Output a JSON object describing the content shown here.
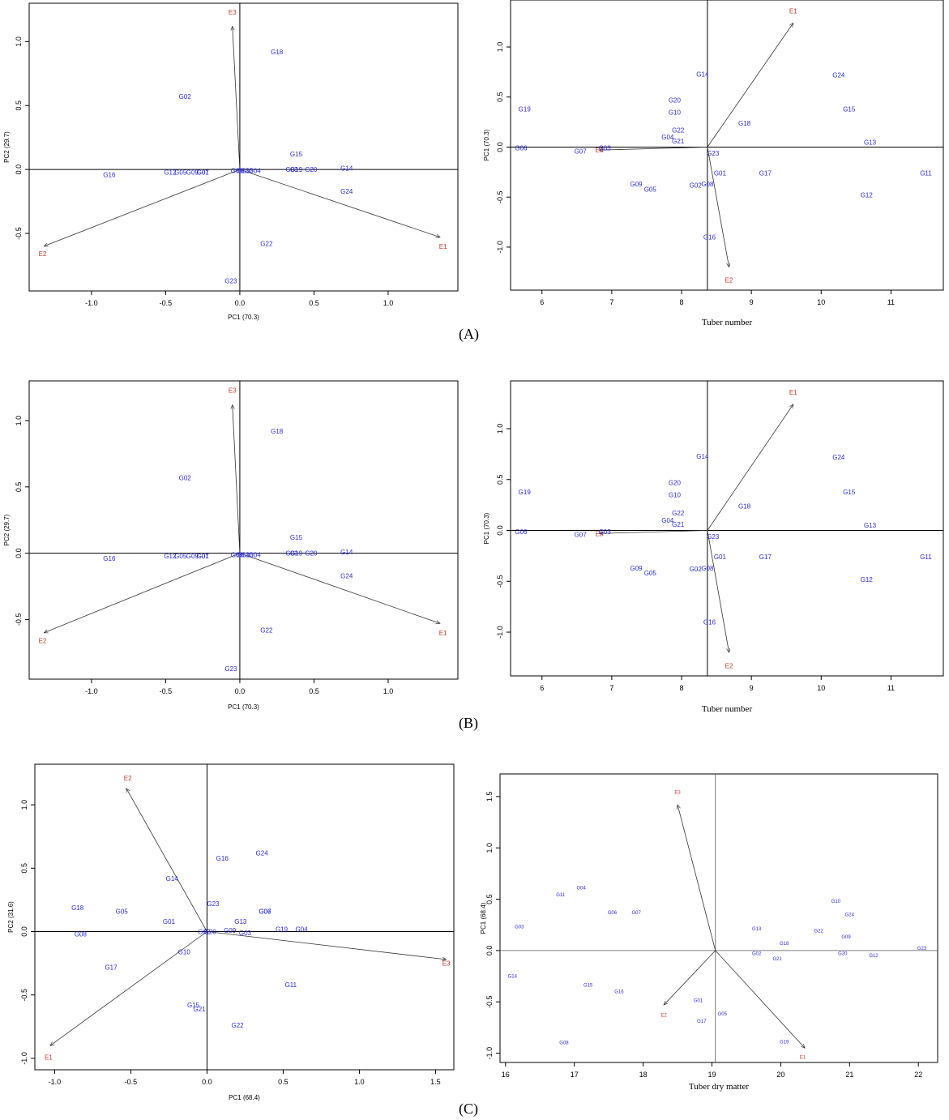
{
  "captions": [
    "(A)",
    "(B)",
    "(C)"
  ],
  "chart_data": [
    {
      "panel": "A-left",
      "type": "scatter",
      "xlabel": "PC1 (70.3)",
      "ylabel": "PC2 (29.7)",
      "xticks": [
        -1.0,
        -0.5,
        0.0,
        0.5,
        1.0
      ],
      "yticks": [
        -0.5,
        0.0,
        0.5,
        1.0
      ],
      "xlim": [
        -1.42,
        1.47
      ],
      "ylim": [
        -0.95,
        1.3
      ],
      "genotypes": [
        {
          "label": "G18",
          "x": 0.25,
          "y": 0.92
        },
        {
          "label": "G02",
          "x": -0.37,
          "y": 0.57
        },
        {
          "label": "G15",
          "x": 0.38,
          "y": 0.12
        },
        {
          "label": "G16",
          "x": -0.88,
          "y": -0.04
        },
        {
          "label": "G12",
          "x": -0.47,
          "y": -0.02
        },
        {
          "label": "G05",
          "x": -0.4,
          "y": -0.02
        },
        {
          "label": "G09",
          "x": -0.32,
          "y": -0.02
        },
        {
          "label": "G01",
          "x": -0.25,
          "y": -0.02
        },
        {
          "label": "G07",
          "x": -0.25,
          "y": -0.02
        },
        {
          "label": "G06",
          "x": -0.02,
          "y": -0.01
        },
        {
          "label": "G13",
          "x": 0.02,
          "y": -0.01
        },
        {
          "label": "G10",
          "x": 0.05,
          "y": -0.01
        },
        {
          "label": "G04",
          "x": 0.1,
          "y": -0.01
        },
        {
          "label": "G03",
          "x": 0.35,
          "y": 0.0
        },
        {
          "label": "G19",
          "x": 0.38,
          "y": 0.0
        },
        {
          "label": "G20",
          "x": 0.48,
          "y": 0.0
        },
        {
          "label": "G14",
          "x": 0.72,
          "y": 0.01
        },
        {
          "label": "G24",
          "x": 0.72,
          "y": -0.17
        },
        {
          "label": "G22",
          "x": 0.18,
          "y": -0.58
        },
        {
          "label": "G23",
          "x": -0.06,
          "y": -0.87
        }
      ],
      "environments": [
        {
          "label": "E1",
          "x": 1.35,
          "y": -0.53,
          "lx": 1.37,
          "ly": -0.6
        },
        {
          "label": "E2",
          "x": -1.32,
          "y": -0.6,
          "lx": -1.33,
          "ly": -0.66
        },
        {
          "label": "E3",
          "x": -0.05,
          "y": 1.12,
          "lx": -0.05,
          "ly": 1.23
        }
      ]
    },
    {
      "panel": "A-right",
      "type": "scatter",
      "xlabel": "Tuber number",
      "ylabel": "PC1 (70.3)",
      "xticks": [
        6,
        7,
        8,
        9,
        10,
        11
      ],
      "yticks": [
        -1.0,
        -0.5,
        0.0,
        0.5,
        1.0
      ],
      "xlim": [
        5.55,
        11.75
      ],
      "ylim": [
        -1.43,
        1.47
      ],
      "ref_x": 8.37,
      "genotypes": [
        {
          "label": "G14",
          "x": 8.3,
          "y": 0.73
        },
        {
          "label": "G24",
          "x": 10.25,
          "y": 0.72
        },
        {
          "label": "G19",
          "x": 5.75,
          "y": 0.38
        },
        {
          "label": "G20",
          "x": 7.9,
          "y": 0.47
        },
        {
          "label": "G10",
          "x": 7.9,
          "y": 0.35
        },
        {
          "label": "G15",
          "x": 10.4,
          "y": 0.38
        },
        {
          "label": "G18",
          "x": 8.9,
          "y": 0.24
        },
        {
          "label": "G22",
          "x": 7.95,
          "y": 0.17
        },
        {
          "label": "G04",
          "x": 7.8,
          "y": 0.1
        },
        {
          "label": "G21",
          "x": 7.95,
          "y": 0.06
        },
        {
          "label": "G06",
          "x": 5.7,
          "y": -0.01
        },
        {
          "label": "G07",
          "x": 6.55,
          "y": -0.04
        },
        {
          "label": "G03",
          "x": 6.9,
          "y": -0.01
        },
        {
          "label": "G13",
          "x": 10.7,
          "y": 0.05
        },
        {
          "label": "G23",
          "x": 8.45,
          "y": -0.06
        },
        {
          "label": "G01",
          "x": 8.55,
          "y": -0.26
        },
        {
          "label": "G17",
          "x": 9.2,
          "y": -0.26
        },
        {
          "label": "G11",
          "x": 11.5,
          "y": -0.26
        },
        {
          "label": "G09",
          "x": 7.35,
          "y": -0.37
        },
        {
          "label": "G05",
          "x": 7.55,
          "y": -0.42
        },
        {
          "label": "G02",
          "x": 8.2,
          "y": -0.38
        },
        {
          "label": "G08",
          "x": 8.37,
          "y": -0.37
        },
        {
          "label": "G12",
          "x": 10.65,
          "y": -0.48
        },
        {
          "label": "G16",
          "x": 8.4,
          "y": -0.9
        }
      ],
      "environments": [
        {
          "label": "E1",
          "x": 9.6,
          "y": 1.24,
          "lx": 9.6,
          "ly": 1.36
        },
        {
          "label": "E2",
          "x": 8.68,
          "y": -1.2,
          "lx": 8.68,
          "ly": -1.33
        },
        {
          "label": "E3",
          "x": 6.82,
          "y": -0.03,
          "lx": 6.82,
          "ly": -0.03
        }
      ]
    },
    {
      "panel": "B-left",
      "type": "scatter",
      "xlabel": "PC1 (70.3)",
      "ylabel": "PC2 (29.7)",
      "xticks": [
        -1.0,
        -0.5,
        0.0,
        0.5,
        1.0
      ],
      "yticks": [
        -0.5,
        0.0,
        0.5,
        1.0
      ],
      "xlim": [
        -1.42,
        1.47
      ],
      "ylim": [
        -0.95,
        1.3
      ],
      "genotypes": [
        {
          "label": "G18",
          "x": 0.25,
          "y": 0.92
        },
        {
          "label": "G02",
          "x": -0.37,
          "y": 0.57
        },
        {
          "label": "G15",
          "x": 0.38,
          "y": 0.12
        },
        {
          "label": "G16",
          "x": -0.88,
          "y": -0.04
        },
        {
          "label": "G12",
          "x": -0.47,
          "y": -0.02
        },
        {
          "label": "G05",
          "x": -0.4,
          "y": -0.02
        },
        {
          "label": "G09",
          "x": -0.32,
          "y": -0.02
        },
        {
          "label": "G01",
          "x": -0.25,
          "y": -0.02
        },
        {
          "label": "G07",
          "x": -0.25,
          "y": -0.02
        },
        {
          "label": "G06",
          "x": -0.02,
          "y": -0.01
        },
        {
          "label": "G13",
          "x": 0.02,
          "y": -0.01
        },
        {
          "label": "G10",
          "x": 0.05,
          "y": -0.01
        },
        {
          "label": "G04",
          "x": 0.1,
          "y": -0.01
        },
        {
          "label": "G03",
          "x": 0.35,
          "y": 0.0
        },
        {
          "label": "G19",
          "x": 0.38,
          "y": 0.0
        },
        {
          "label": "G20",
          "x": 0.48,
          "y": 0.0
        },
        {
          "label": "G14",
          "x": 0.72,
          "y": 0.01
        },
        {
          "label": "G24",
          "x": 0.72,
          "y": -0.17
        },
        {
          "label": "G22",
          "x": 0.18,
          "y": -0.58
        },
        {
          "label": "G23",
          "x": -0.06,
          "y": -0.87
        }
      ],
      "environments": [
        {
          "label": "E1",
          "x": 1.35,
          "y": -0.53,
          "lx": 1.37,
          "ly": -0.6
        },
        {
          "label": "E2",
          "x": -1.32,
          "y": -0.6,
          "lx": -1.33,
          "ly": -0.66
        },
        {
          "label": "E3",
          "x": -0.05,
          "y": 1.12,
          "lx": -0.05,
          "ly": 1.23
        }
      ]
    },
    {
      "panel": "B-right",
      "type": "scatter",
      "xlabel": "Tuber number",
      "ylabel": "PC1 (70.3)",
      "xticks": [
        6,
        7,
        8,
        9,
        10,
        11
      ],
      "yticks": [
        -1.0,
        -0.5,
        0.0,
        0.5,
        1.0
      ],
      "xlim": [
        5.55,
        11.75
      ],
      "ylim": [
        -1.43,
        1.47
      ],
      "ref_x": 8.37,
      "genotypes": [
        {
          "label": "G14",
          "x": 8.3,
          "y": 0.73
        },
        {
          "label": "G24",
          "x": 10.25,
          "y": 0.72
        },
        {
          "label": "G19",
          "x": 5.75,
          "y": 0.38
        },
        {
          "label": "G20",
          "x": 7.9,
          "y": 0.47
        },
        {
          "label": "G10",
          "x": 7.9,
          "y": 0.35
        },
        {
          "label": "G15",
          "x": 10.4,
          "y": 0.38
        },
        {
          "label": "G18",
          "x": 8.9,
          "y": 0.24
        },
        {
          "label": "G22",
          "x": 7.95,
          "y": 0.17
        },
        {
          "label": "G04",
          "x": 7.8,
          "y": 0.1
        },
        {
          "label": "G21",
          "x": 7.95,
          "y": 0.06
        },
        {
          "label": "G06",
          "x": 5.7,
          "y": -0.01
        },
        {
          "label": "G07",
          "x": 6.55,
          "y": -0.04
        },
        {
          "label": "G03",
          "x": 6.9,
          "y": -0.01
        },
        {
          "label": "G13",
          "x": 10.7,
          "y": 0.05
        },
        {
          "label": "G23",
          "x": 8.45,
          "y": -0.06
        },
        {
          "label": "G01",
          "x": 8.55,
          "y": -0.26
        },
        {
          "label": "G17",
          "x": 9.2,
          "y": -0.26
        },
        {
          "label": "G11",
          "x": 11.5,
          "y": -0.26
        },
        {
          "label": "G09",
          "x": 7.35,
          "y": -0.37
        },
        {
          "label": "G05",
          "x": 7.55,
          "y": -0.42
        },
        {
          "label": "G02",
          "x": 8.2,
          "y": -0.38
        },
        {
          "label": "G08",
          "x": 8.37,
          "y": -0.37
        },
        {
          "label": "G12",
          "x": 10.65,
          "y": -0.48
        },
        {
          "label": "G16",
          "x": 8.4,
          "y": -0.9
        }
      ],
      "environments": [
        {
          "label": "E1",
          "x": 9.6,
          "y": 1.24,
          "lx": 9.6,
          "ly": 1.36
        },
        {
          "label": "E2",
          "x": 8.68,
          "y": -1.2,
          "lx": 8.68,
          "ly": -1.33
        },
        {
          "label": "E3",
          "x": 6.82,
          "y": -0.03,
          "lx": 6.82,
          "ly": -0.03
        }
      ]
    },
    {
      "panel": "C-left",
      "type": "scatter",
      "xlabel": "PC1 (68.4)",
      "ylabel": "PC2 (31.6)",
      "xticks": [
        -1.0,
        -0.5,
        0.0,
        0.5,
        1.0,
        1.5
      ],
      "yticks": [
        -1.0,
        -0.5,
        0.0,
        0.5,
        1.0
      ],
      "xlim": [
        -1.13,
        1.62
      ],
      "ylim": [
        -1.09,
        1.32
      ],
      "genotypes": [
        {
          "label": "G24",
          "x": 0.36,
          "y": 0.62
        },
        {
          "label": "G16",
          "x": 0.1,
          "y": 0.58
        },
        {
          "label": "G14",
          "x": -0.23,
          "y": 0.42
        },
        {
          "label": "G23",
          "x": 0.04,
          "y": 0.22
        },
        {
          "label": "G18",
          "x": -0.85,
          "y": 0.19
        },
        {
          "label": "G05",
          "x": -0.56,
          "y": 0.16
        },
        {
          "label": "G07",
          "x": 0.38,
          "y": 0.16
        },
        {
          "label": "G06",
          "x": 0.38,
          "y": 0.16
        },
        {
          "label": "G01",
          "x": -0.25,
          "y": 0.08
        },
        {
          "label": "G13",
          "x": 0.22,
          "y": 0.08
        },
        {
          "label": "G08",
          "x": -0.83,
          "y": -0.02
        },
        {
          "label": "G02",
          "x": -0.02,
          "y": 0.0
        },
        {
          "label": "G20",
          "x": 0.02,
          "y": 0.0
        },
        {
          "label": "G09",
          "x": 0.15,
          "y": 0.01
        },
        {
          "label": "G03",
          "x": 0.25,
          "y": -0.01
        },
        {
          "label": "G19",
          "x": 0.49,
          "y": 0.02
        },
        {
          "label": "G04",
          "x": 0.62,
          "y": 0.02
        },
        {
          "label": "G17",
          "x": -0.63,
          "y": -0.28
        },
        {
          "label": "G10",
          "x": -0.15,
          "y": -0.16
        },
        {
          "label": "G11",
          "x": 0.55,
          "y": -0.42
        },
        {
          "label": "G15",
          "x": -0.09,
          "y": -0.58
        },
        {
          "label": "G21",
          "x": -0.05,
          "y": -0.61
        },
        {
          "label": "G22",
          "x": 0.2,
          "y": -0.74
        }
      ],
      "environments": [
        {
          "label": "E1",
          "x": -1.03,
          "y": -0.9,
          "lx": -1.04,
          "ly": -0.99
        },
        {
          "label": "E2",
          "x": -0.53,
          "y": 1.13,
          "lx": -0.52,
          "ly": 1.21
        },
        {
          "label": "E3",
          "x": 1.57,
          "y": -0.22,
          "lx": 1.57,
          "ly": -0.25
        }
      ]
    },
    {
      "panel": "C-right",
      "type": "scatter",
      "xlabel": "Tuber dry matter",
      "ylabel": "PC1 (68.4)",
      "xticks": [
        16,
        17,
        18,
        19,
        20,
        21,
        22
      ],
      "yticks": [
        -1.0,
        -0.5,
        0.0,
        0.5,
        1.0,
        1.5
      ],
      "xlim": [
        15.92,
        22.28
      ],
      "ylim": [
        -1.09,
        1.72
      ],
      "ref_x": 19.05,
      "genotypes": [
        {
          "label": "G04",
          "x": 17.1,
          "y": 0.62
        },
        {
          "label": "G11",
          "x": 16.8,
          "y": 0.55
        },
        {
          "label": "G06",
          "x": 17.55,
          "y": 0.38
        },
        {
          "label": "G07",
          "x": 17.9,
          "y": 0.38
        },
        {
          "label": "G03",
          "x": 16.2,
          "y": 0.24
        },
        {
          "label": "G10",
          "x": 20.8,
          "y": 0.49
        },
        {
          "label": "G24",
          "x": 21.0,
          "y": 0.36
        },
        {
          "label": "G13",
          "x": 19.65,
          "y": 0.22
        },
        {
          "label": "G22",
          "x": 20.55,
          "y": 0.2
        },
        {
          "label": "G09",
          "x": 20.95,
          "y": 0.14
        },
        {
          "label": "G18",
          "x": 20.05,
          "y": 0.08
        },
        {
          "label": "G02",
          "x": 19.65,
          "y": -0.02
        },
        {
          "label": "G21",
          "x": 19.95,
          "y": -0.07
        },
        {
          "label": "G20",
          "x": 20.9,
          "y": -0.02
        },
        {
          "label": "G12",
          "x": 21.35,
          "y": -0.04
        },
        {
          "label": "G23",
          "x": 22.05,
          "y": 0.03
        },
        {
          "label": "G14",
          "x": 16.1,
          "y": -0.24
        },
        {
          "label": "G15",
          "x": 17.2,
          "y": -0.33
        },
        {
          "label": "G16",
          "x": 17.65,
          "y": -0.39
        },
        {
          "label": "G01",
          "x": 18.8,
          "y": -0.48
        },
        {
          "label": "G05",
          "x": 19.15,
          "y": -0.61
        },
        {
          "label": "G17",
          "x": 18.85,
          "y": -0.68
        },
        {
          "label": "G08",
          "x": 16.85,
          "y": -0.89
        },
        {
          "label": "G19",
          "x": 20.05,
          "y": -0.88
        }
      ],
      "environments": [
        {
          "label": "E1",
          "x": 20.35,
          "y": -0.95,
          "lx": 20.32,
          "ly": -1.03
        },
        {
          "label": "E2",
          "x": 18.3,
          "y": -0.53,
          "lx": 18.3,
          "ly": -0.62
        },
        {
          "label": "E3",
          "x": 18.5,
          "y": 1.42,
          "lx": 18.5,
          "ly": 1.55
        }
      ]
    }
  ]
}
